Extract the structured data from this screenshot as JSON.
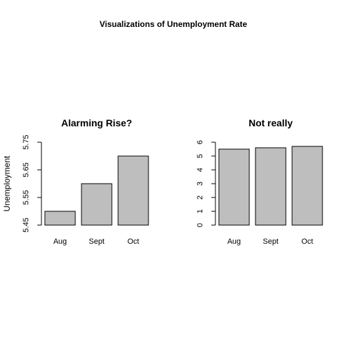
{
  "title": "Visualizations of Unemployment Rate",
  "chart_data": [
    {
      "type": "bar",
      "title": "Alarming Rise?",
      "categories": [
        "Aug",
        "Sept",
        "Oct"
      ],
      "values": [
        5.5,
        5.6,
        5.7
      ],
      "xlabel": "",
      "ylabel": "Unemployment",
      "ylim": [
        5.45,
        5.75
      ],
      "yticks": [
        "5.45",
        "5.55",
        "5.65",
        "5.75"
      ],
      "grid": false,
      "colors": {
        "bar_fill": "#bebebe",
        "bar_stroke": "#000000"
      }
    },
    {
      "type": "bar",
      "title": "Not really",
      "categories": [
        "Aug",
        "Sept",
        "Oct"
      ],
      "values": [
        5.5,
        5.6,
        5.7
      ],
      "xlabel": "",
      "ylabel": "",
      "ylim": [
        0,
        6
      ],
      "yticks": [
        "0",
        "1",
        "2",
        "3",
        "4",
        "5",
        "6"
      ],
      "grid": false,
      "colors": {
        "bar_fill": "#bebebe",
        "bar_stroke": "#000000"
      }
    }
  ]
}
